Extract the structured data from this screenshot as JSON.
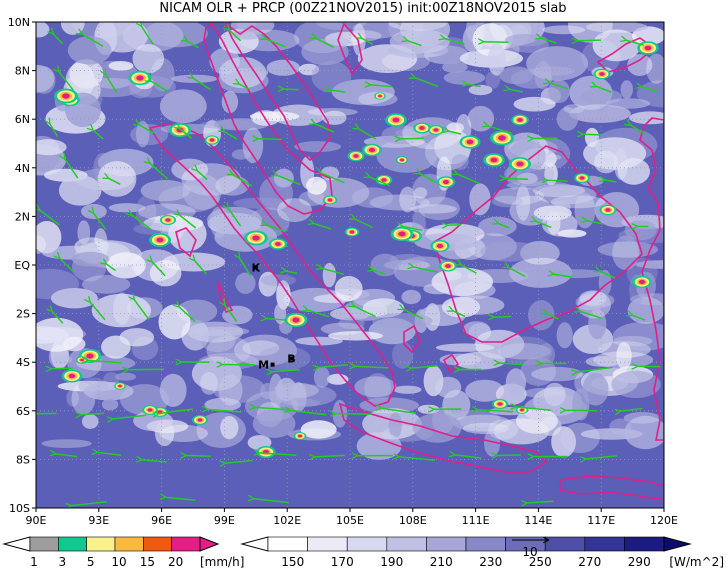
{
  "title": "NICAM OLR + PRCP (00Z21NOV2015) init:00Z18NOV2015 slab",
  "map": {
    "lon_min": 90,
    "lon_max": 120,
    "lat_min": -10,
    "lat_max": 10,
    "y_ticks": [
      {
        "lat": 10,
        "label": "10N"
      },
      {
        "lat": 8,
        "label": "8N"
      },
      {
        "lat": 6,
        "label": "6N"
      },
      {
        "lat": 4,
        "label": "4N"
      },
      {
        "lat": 2,
        "label": "2N"
      },
      {
        "lat": 0,
        "label": "EQ"
      },
      {
        "lat": -2,
        "label": "2S"
      },
      {
        "lat": -4,
        "label": "4S"
      },
      {
        "lat": -6,
        "label": "6S"
      },
      {
        "lat": -8,
        "label": "8S"
      },
      {
        "lat": -10,
        "label": "10S"
      }
    ],
    "x_ticks": [
      {
        "lon": 90,
        "label": "90E"
      },
      {
        "lon": 93,
        "label": "93E"
      },
      {
        "lon": 96,
        "label": "96E"
      },
      {
        "lon": 99,
        "label": "99E"
      },
      {
        "lon": 102,
        "label": "102E"
      },
      {
        "lon": 105,
        "label": "105E"
      },
      {
        "lon": 108,
        "label": "108E"
      },
      {
        "lon": 111,
        "label": "111E"
      },
      {
        "lon": 114,
        "label": "114E"
      },
      {
        "lon": 117,
        "label": "117E"
      },
      {
        "lon": 120,
        "label": "120E"
      }
    ],
    "stations": [
      {
        "label": "K",
        "lon": 100.5,
        "lat": -0.1
      },
      {
        "label": "M",
        "lon": 101.3,
        "lat": -4.1
      },
      {
        "label": "B",
        "lon": 102.2,
        "lat": -3.85
      }
    ],
    "colors": {
      "ocean": "#5c5fb8",
      "cloud": "#f2f3fb",
      "coast": "#e0208a",
      "wind": "#22cc22",
      "grid": "#9a9ab0"
    }
  },
  "prcp_colorbar": {
    "labels": [
      "1",
      "3",
      "5",
      "10",
      "15",
      "20"
    ],
    "units": "[mm/h]",
    "colors": [
      "#9e9e9e",
      "#13c890",
      "#faf08c",
      "#fbb940",
      "#f05a10",
      "#e51e86"
    ]
  },
  "olr_colorbar": {
    "labels": [
      "150",
      "170",
      "190",
      "210",
      "230",
      "250",
      "270",
      "290"
    ],
    "units": "[W/m^2]",
    "colors": [
      "#ffffff",
      "#ececf8",
      "#d8d8f0",
      "#c0c0e4",
      "#a6a6d8",
      "#8888c8",
      "#6c6cb8",
      "#4e4ea8",
      "#343496",
      "#1c1c80"
    ]
  },
  "wind_reference": {
    "label": "10"
  }
}
